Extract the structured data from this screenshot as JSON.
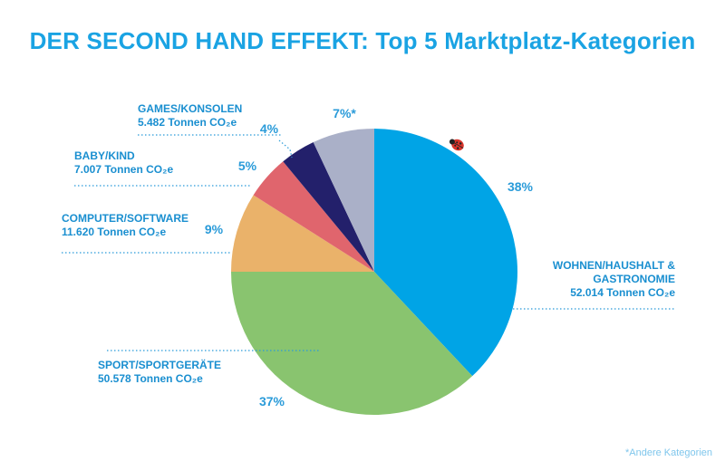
{
  "title": "DER SECOND HAND EFFEKT: Top 5 Marktplatz-Kategorien",
  "footnote": "*Andere Kategorien",
  "chart_data": {
    "type": "pie",
    "title": "DER SECOND HAND EFFEKT: Top 5 Marktplatz-Kategorien",
    "slices": [
      {
        "name": "WOHNEN/HAUSHALT & GASTRONOMIE",
        "name_lines": [
          "WOHNEN/HAUSHALT &",
          "GASTRONOMIE"
        ],
        "value_text": "52.014 Tonnen CO₂e",
        "value": 52014,
        "percent": 38,
        "percent_label": "38%",
        "color": "#00a4e6"
      },
      {
        "name": "SPORT/SPORTGERÄTE",
        "name_lines": [
          "SPORT/SPORTGERÄTE"
        ],
        "value_text": "50.578 Tonnen CO₂e",
        "value": 50578,
        "percent": 37,
        "percent_label": "37%",
        "color": "#89c46f"
      },
      {
        "name": "COMPUTER/SOFTWARE",
        "name_lines": [
          "COMPUTER/SOFTWARE"
        ],
        "value_text": "11.620 Tonnen CO₂e",
        "value": 11620,
        "percent": 9,
        "percent_label": "9%",
        "color": "#eab26a"
      },
      {
        "name": "BABY/KIND",
        "name_lines": [
          "BABY/KIND"
        ],
        "value_text": "7.007 Tonnen CO₂e",
        "value": 7007,
        "percent": 5,
        "percent_label": "5%",
        "color": "#e0656d"
      },
      {
        "name": "GAMES/KONSOLEN",
        "name_lines": [
          "GAMES/KONSOLEN"
        ],
        "value_text": "5.482 Tonnen CO₂e",
        "value": 5482,
        "percent": 4,
        "percent_label": "4%",
        "color": "#23206b"
      },
      {
        "name": "",
        "name_lines": [],
        "value_text": "",
        "value": null,
        "percent": 7,
        "percent_label": "7%*",
        "color": "#aab0c8"
      }
    ],
    "legend": "none",
    "decoration": "ladybug-icon"
  }
}
